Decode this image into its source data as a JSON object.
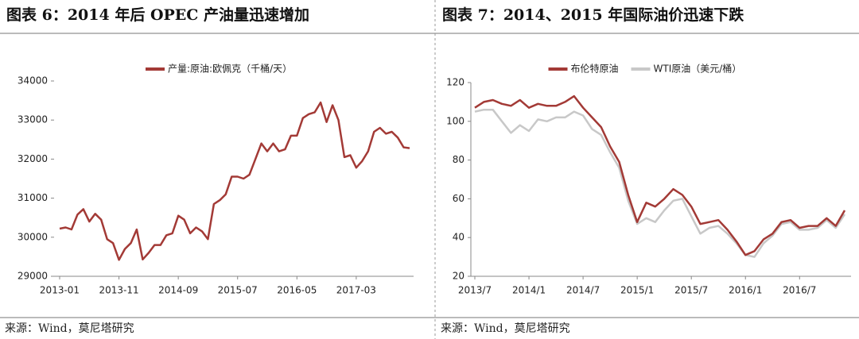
{
  "chart_data": [
    {
      "type": "line",
      "title": "图表 6：2014 年后 OPEC 产油量迅速增加",
      "source": "来源：Wind，莫尼塔研究",
      "categories": [
        "2013-01",
        null,
        null,
        null,
        null,
        null,
        null,
        null,
        null,
        null,
        "2013-11",
        null,
        null,
        null,
        null,
        null,
        null,
        null,
        null,
        null,
        "2014-09",
        null,
        null,
        null,
        null,
        null,
        null,
        null,
        null,
        null,
        "2015-07",
        null,
        null,
        null,
        null,
        null,
        null,
        null,
        null,
        null,
        "2016-05",
        null,
        null,
        null,
        null,
        null,
        null,
        null,
        null,
        null,
        "2017-03",
        null,
        null,
        null,
        null,
        null,
        null,
        null,
        null,
        null
      ],
      "series": [
        {
          "name": "产量:原油:欧佩克（千桶/天）",
          "color": "#a33a36",
          "values": [
            30220,
            30250,
            30200,
            30580,
            30720,
            30400,
            30600,
            30450,
            29950,
            29850,
            29420,
            29700,
            29850,
            30200,
            29430,
            29600,
            29800,
            29800,
            30050,
            30100,
            30550,
            30450,
            30100,
            30250,
            30150,
            29950,
            30850,
            30950,
            31100,
            31550,
            31550,
            31500,
            31600,
            32000,
            32400,
            32200,
            32400,
            32200,
            32250,
            32600,
            32600,
            33050,
            33150,
            33200,
            33450,
            32950,
            33380,
            33000,
            32050,
            32100,
            31780,
            31950,
            32200,
            32700,
            32800,
            32650,
            32700,
            32550,
            32300,
            32280
          ]
        }
      ],
      "ylim": [
        29000,
        34000
      ],
      "yticks": [
        29000,
        30000,
        31000,
        32000,
        33000,
        34000
      ]
    },
    {
      "type": "line",
      "title": "图表 7：2014、2015 年国际油价迅速下跌",
      "source": "来源：Wind，莫尼塔研究",
      "categories": [
        "2013/7",
        null,
        null,
        null,
        null,
        null,
        "2014/1",
        null,
        null,
        null,
        null,
        null,
        "2014/7",
        null,
        null,
        null,
        null,
        null,
        "2015/1",
        null,
        null,
        null,
        null,
        null,
        "2015/7",
        null,
        null,
        null,
        null,
        null,
        "2016/1",
        null,
        null,
        null,
        null,
        null,
        "2016/7",
        null,
        null,
        null,
        null,
        null
      ],
      "series": [
        {
          "name": "布伦特原油",
          "color": "#a33a36",
          "values": [
            107,
            110,
            111,
            109,
            108,
            111,
            107,
            109,
            108,
            108,
            110,
            113,
            107,
            102,
            97,
            87,
            79,
            62,
            48,
            58,
            56,
            60,
            65,
            62,
            56,
            47,
            48,
            49,
            44,
            38,
            31,
            33,
            39,
            42,
            48,
            49,
            45,
            46,
            46,
            50,
            46,
            54
          ]
        },
        {
          "name": "WTI原油（美元/桶）",
          "color": "#c8c8c8",
          "values": [
            105,
            106,
            106,
            100,
            94,
            98,
            95,
            101,
            100,
            102,
            102,
            105,
            103,
            96,
            93,
            84,
            76,
            59,
            47,
            50,
            48,
            54,
            59,
            60,
            51,
            42,
            45,
            46,
            42,
            37,
            31,
            30,
            37,
            41,
            47,
            48,
            44,
            44,
            45,
            49,
            45,
            52
          ]
        }
      ],
      "ylim": [
        20,
        120
      ],
      "yticks": [
        20,
        40,
        60,
        80,
        100,
        120
      ]
    }
  ]
}
